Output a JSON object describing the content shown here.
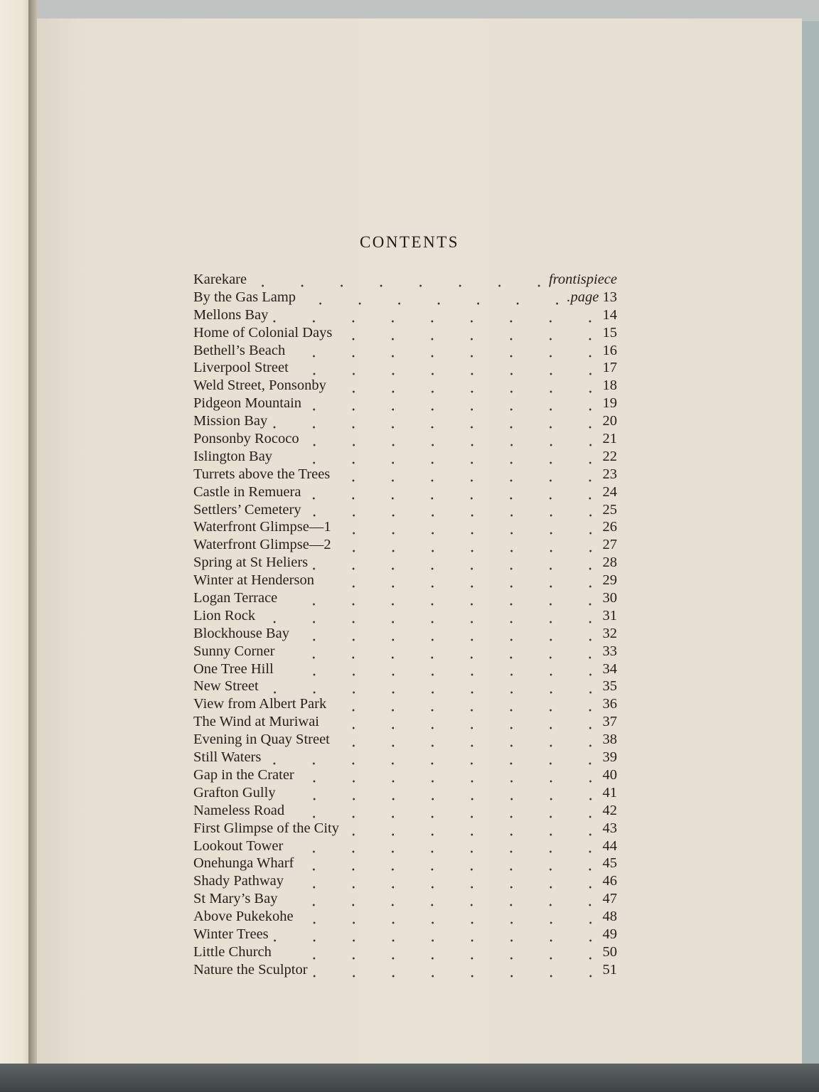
{
  "title": "CONTENTS",
  "entries": [
    {
      "name": "Karekare",
      "page": "frontispiece"
    },
    {
      "name": "By the Gas Lamp",
      "page_prefix": ".page",
      "page": "13"
    },
    {
      "name": "Mellons Bay",
      "page": "14"
    },
    {
      "name": "Home of Colonial Days",
      "page": "15"
    },
    {
      "name": "Bethell’s Beach",
      "page": "16"
    },
    {
      "name": "Liverpool Street",
      "page": "17"
    },
    {
      "name": "Weld Street, Ponsonby",
      "page": "18"
    },
    {
      "name": "Pidgeon Mountain",
      "page": "19"
    },
    {
      "name": "Mission Bay",
      "page": "20"
    },
    {
      "name": "Ponsonby Rococo",
      "page": "21"
    },
    {
      "name": "Islington Bay",
      "page": "22"
    },
    {
      "name": "Turrets above the Trees",
      "page": "23"
    },
    {
      "name": "Castle in Remuera",
      "page": "24"
    },
    {
      "name": "Settlers’ Cemetery",
      "page": "25"
    },
    {
      "name": "Waterfront Glimpse—1",
      "page": "26"
    },
    {
      "name": "Waterfront Glimpse—2",
      "page": "27"
    },
    {
      "name": "Spring at St Heliers",
      "page": "28"
    },
    {
      "name": "Winter at Henderson",
      "page": "29"
    },
    {
      "name": "Logan Terrace",
      "page": "30"
    },
    {
      "name": "Lion Rock",
      "page": "31"
    },
    {
      "name": "Blockhouse Bay",
      "page": "32"
    },
    {
      "name": "Sunny Corner",
      "page": "33"
    },
    {
      "name": "One Tree Hill",
      "page": "34"
    },
    {
      "name": "New Street",
      "page": "35"
    },
    {
      "name": "View from Albert Park",
      "page": "36"
    },
    {
      "name": "The Wind at Muriwai",
      "page": "37"
    },
    {
      "name": "Evening in Quay Street",
      "page": "38"
    },
    {
      "name": "Still Waters",
      "page": "39"
    },
    {
      "name": "Gap in the Crater",
      "page": "40"
    },
    {
      "name": "Grafton Gully",
      "page": "41"
    },
    {
      "name": "Nameless Road",
      "page": "42"
    },
    {
      "name": "First Glimpse of the City",
      "page": "43"
    },
    {
      "name": "Lookout Tower",
      "page": "44"
    },
    {
      "name": "Onehunga Wharf",
      "page": "45"
    },
    {
      "name": "Shady Pathway",
      "page": "46"
    },
    {
      "name": "St Mary’s Bay",
      "page": "47"
    },
    {
      "name": "Above Pukekohe",
      "page": "48"
    },
    {
      "name": "Winter Trees",
      "page": "49"
    },
    {
      "name": "Little Church",
      "page": "50"
    },
    {
      "name": "Nature the Sculptor",
      "page": "51"
    }
  ]
}
